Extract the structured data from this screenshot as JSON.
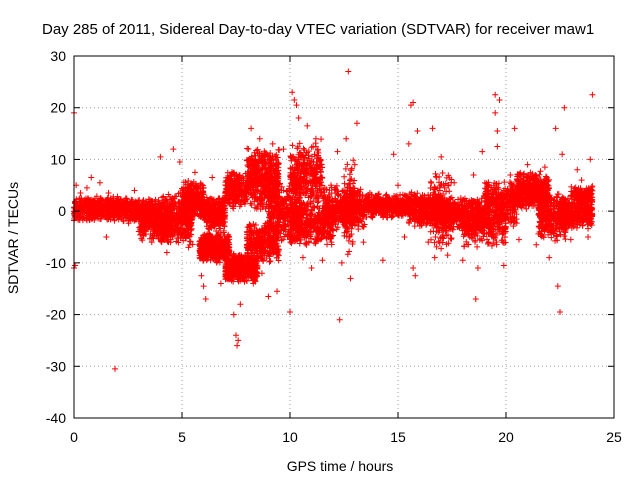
{
  "chart_data": {
    "type": "scatter",
    "title": "Day 285 of 2011, Sidereal Day-to-day VTEC variation (SDTVAR) for receiver maw1",
    "xlabel": "GPS time / hours",
    "ylabel": "SDTVAR / TECUs",
    "xlim": [
      0,
      25
    ],
    "ylim": [
      -40,
      30
    ],
    "xticks": [
      0,
      5,
      10,
      15,
      20,
      25
    ],
    "yticks": [
      -40,
      -30,
      -20,
      -10,
      0,
      10,
      20,
      30
    ],
    "grid": true,
    "marker": "+",
    "color": "#ff0000",
    "series": [
      {
        "name": "SDTVAR",
        "points": [
          [
            0.0,
            19.0
          ],
          [
            0.0,
            -11.0
          ],
          [
            0.05,
            -10.5
          ],
          [
            0.1,
            5.0
          ],
          [
            0.3,
            3.5
          ],
          [
            0.6,
            4.5
          ],
          [
            0.8,
            6.5
          ],
          [
            1.2,
            5.5
          ],
          [
            1.5,
            -5.0
          ],
          [
            1.6,
            3.5
          ],
          [
            1.9,
            -30.5
          ],
          [
            2.4,
            2.5
          ],
          [
            2.8,
            4.0
          ],
          [
            3.2,
            -4.5
          ],
          [
            3.6,
            -6.0
          ],
          [
            4.0,
            10.5
          ],
          [
            4.3,
            -8.0
          ],
          [
            4.6,
            12.0
          ],
          [
            4.9,
            9.5
          ],
          [
            5.3,
            -7.0
          ],
          [
            5.6,
            7.5
          ],
          [
            5.9,
            -12.5
          ],
          [
            6.0,
            -14.5
          ],
          [
            6.1,
            -17.0
          ],
          [
            6.4,
            6.5
          ],
          [
            6.8,
            -14.0
          ],
          [
            7.2,
            -10.5
          ],
          [
            7.4,
            -20.0
          ],
          [
            7.5,
            -24.0
          ],
          [
            7.55,
            -26.0
          ],
          [
            7.6,
            -25.0
          ],
          [
            7.7,
            -18.0
          ],
          [
            8.0,
            -11.5
          ],
          [
            8.2,
            16.0
          ],
          [
            8.3,
            -14.0
          ],
          [
            8.6,
            14.0
          ],
          [
            8.7,
            -12.0
          ],
          [
            9.0,
            -16.5
          ],
          [
            9.2,
            13.0
          ],
          [
            9.4,
            -15.5
          ],
          [
            9.7,
            12.0
          ],
          [
            10.0,
            -19.5
          ],
          [
            10.1,
            23.0
          ],
          [
            10.2,
            21.5
          ],
          [
            10.3,
            20.5
          ],
          [
            10.4,
            18.0
          ],
          [
            10.6,
            -9.0
          ],
          [
            10.8,
            16.5
          ],
          [
            11.0,
            -11.0
          ],
          [
            11.2,
            14.0
          ],
          [
            11.5,
            -9.5
          ],
          [
            11.9,
            5.0
          ],
          [
            12.2,
            11.5
          ],
          [
            12.3,
            -21.0
          ],
          [
            12.4,
            -10.0
          ],
          [
            12.6,
            14.0
          ],
          [
            12.7,
            27.0
          ],
          [
            12.8,
            -13.0
          ],
          [
            13.0,
            9.0
          ],
          [
            13.1,
            17.0
          ],
          [
            13.4,
            -6.0
          ],
          [
            13.7,
            3.5
          ],
          [
            14.3,
            -9.5
          ],
          [
            14.8,
            11.0
          ],
          [
            15.0,
            5.0
          ],
          [
            15.3,
            -5.0
          ],
          [
            15.5,
            13.0
          ],
          [
            15.6,
            20.5
          ],
          [
            15.7,
            21.0
          ],
          [
            15.7,
            -11.0
          ],
          [
            15.8,
            -12.5
          ],
          [
            15.9,
            15.5
          ],
          [
            16.4,
            -6.0
          ],
          [
            16.6,
            16.0
          ],
          [
            16.7,
            -9.0
          ],
          [
            17.0,
            10.5
          ],
          [
            17.3,
            -8.5
          ],
          [
            17.6,
            5.5
          ],
          [
            18.0,
            -9.5
          ],
          [
            18.5,
            7.0
          ],
          [
            18.6,
            -17.0
          ],
          [
            18.7,
            -11.0
          ],
          [
            18.9,
            11.5
          ],
          [
            19.2,
            -6.0
          ],
          [
            19.5,
            22.5
          ],
          [
            19.5,
            19.0
          ],
          [
            19.6,
            15.5
          ],
          [
            19.6,
            12.5
          ],
          [
            19.7,
            21.5
          ],
          [
            19.9,
            -10.5
          ],
          [
            20.2,
            7.0
          ],
          [
            20.4,
            16.0
          ],
          [
            20.6,
            -5.5
          ],
          [
            21.0,
            9.0
          ],
          [
            21.4,
            -6.5
          ],
          [
            21.8,
            8.5
          ],
          [
            22.0,
            -9.0
          ],
          [
            22.3,
            16.0
          ],
          [
            22.4,
            -14.5
          ],
          [
            22.5,
            -19.5
          ],
          [
            22.6,
            11.0
          ],
          [
            22.7,
            20.0
          ],
          [
            23.0,
            -5.5
          ],
          [
            23.3,
            8.0
          ],
          [
            23.5,
            6.0
          ],
          [
            23.8,
            -5.0
          ],
          [
            23.9,
            10.0
          ],
          [
            24.0,
            22.5
          ]
        ],
        "bands": [
          {
            "x0": 0.0,
            "x1": 2.2,
            "y0": -2.0,
            "y1": 3.0,
            "n": 600
          },
          {
            "x0": 2.2,
            "x1": 4.0,
            "y0": -2.5,
            "y1": 2.5,
            "n": 400
          },
          {
            "x0": 3.0,
            "x1": 4.5,
            "y0": -6.0,
            "y1": 0.0,
            "n": 200
          },
          {
            "x0": 4.0,
            "x1": 5.5,
            "y0": -7.0,
            "y1": 4.0,
            "n": 450
          },
          {
            "x0": 5.0,
            "x1": 6.0,
            "y0": -2.0,
            "y1": 6.0,
            "n": 300
          },
          {
            "x0": 5.8,
            "x1": 7.2,
            "y0": -10.0,
            "y1": -4.0,
            "n": 500
          },
          {
            "x0": 6.0,
            "x1": 7.0,
            "y0": -4.0,
            "y1": 3.0,
            "n": 300
          },
          {
            "x0": 7.0,
            "x1": 8.5,
            "y0": -14.0,
            "y1": -8.0,
            "n": 500
          },
          {
            "x0": 7.0,
            "x1": 8.0,
            "y0": 0.0,
            "y1": 8.0,
            "n": 250
          },
          {
            "x0": 8.0,
            "x1": 9.5,
            "y0": 0.0,
            "y1": 13.0,
            "n": 500
          },
          {
            "x0": 8.0,
            "x1": 9.5,
            "y0": -10.0,
            "y1": -2.0,
            "n": 350
          },
          {
            "x0": 9.0,
            "x1": 10.5,
            "y0": -6.0,
            "y1": 6.0,
            "n": 400
          },
          {
            "x0": 10.0,
            "x1": 11.5,
            "y0": 0.0,
            "y1": 14.0,
            "n": 350
          },
          {
            "x0": 10.0,
            "x1": 12.0,
            "y0": -7.0,
            "y1": 2.0,
            "n": 400
          },
          {
            "x0": 11.5,
            "x1": 13.5,
            "y0": -4.0,
            "y1": 5.0,
            "n": 450
          },
          {
            "x0": 12.5,
            "x1": 13.0,
            "y0": -9.0,
            "y1": 10.0,
            "n": 120
          },
          {
            "x0": 13.5,
            "x1": 15.5,
            "y0": -1.5,
            "y1": 3.5,
            "n": 450
          },
          {
            "x0": 15.5,
            "x1": 17.0,
            "y0": -3.0,
            "y1": 4.0,
            "n": 400
          },
          {
            "x0": 16.5,
            "x1": 17.5,
            "y0": -8.0,
            "y1": 8.0,
            "n": 200
          },
          {
            "x0": 17.0,
            "x1": 19.0,
            "y0": -4.0,
            "y1": 3.0,
            "n": 450
          },
          {
            "x0": 18.0,
            "x1": 20.0,
            "y0": -7.0,
            "y1": 1.0,
            "n": 250
          },
          {
            "x0": 19.0,
            "x1": 20.5,
            "y0": -3.0,
            "y1": 6.0,
            "n": 350
          },
          {
            "x0": 20.5,
            "x1": 22.0,
            "y0": 0.0,
            "y1": 8.0,
            "n": 450
          },
          {
            "x0": 21.5,
            "x1": 22.8,
            "y0": -6.0,
            "y1": 4.0,
            "n": 350
          },
          {
            "x0": 22.5,
            "x1": 24.0,
            "y0": -3.5,
            "y1": 3.0,
            "n": 400
          },
          {
            "x0": 23.0,
            "x1": 24.0,
            "y0": 1.0,
            "y1": 5.0,
            "n": 150
          }
        ]
      }
    ]
  }
}
